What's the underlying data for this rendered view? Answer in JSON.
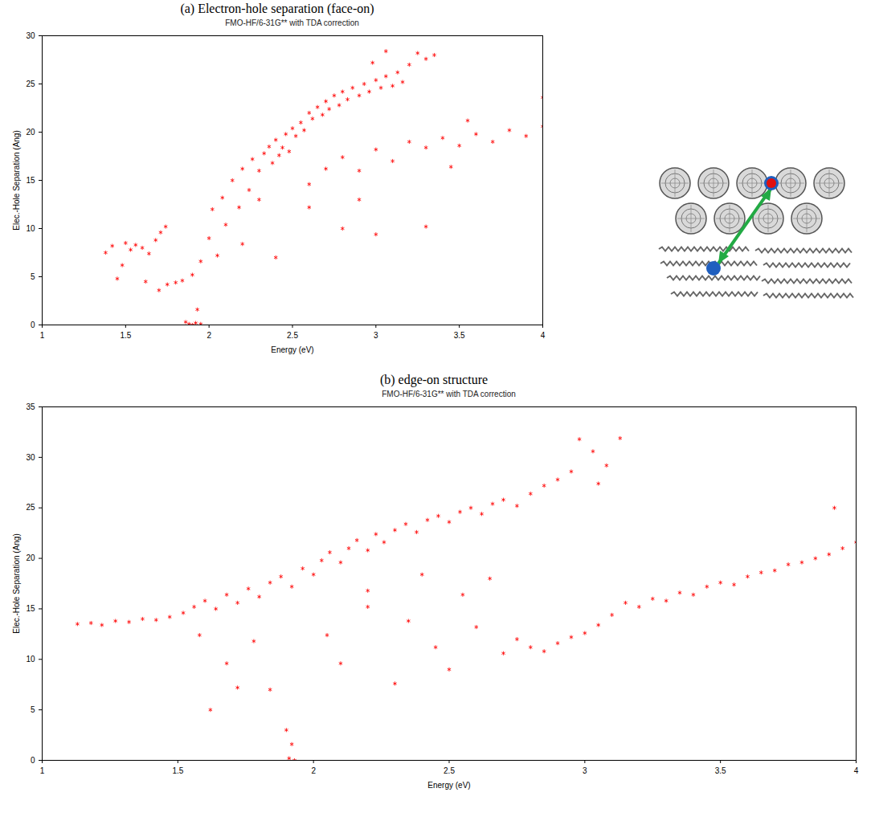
{
  "chart_data": [
    {
      "type": "scatter",
      "title": "(a) Electron-hole separation (face-on)",
      "subtitle": "FMO-HF/6-31G** with TDA correction",
      "x_label": "Energy (eV)",
      "y_label": "Elec.-Hole Separation (Ang)",
      "color": "#ff0000",
      "marker": "asterisk",
      "grid": false,
      "xlim": [
        1,
        4
      ],
      "xticks": [
        1,
        1.5,
        2,
        2.5,
        3,
        3.5,
        4
      ],
      "ylim": [
        0,
        30
      ],
      "yticks": [
        0,
        5,
        10,
        15,
        20,
        25,
        30
      ],
      "x": [
        1.38,
        1.42,
        1.45,
        1.48,
        1.5,
        1.53,
        1.56,
        1.6,
        1.64,
        1.68,
        1.71,
        1.74,
        1.62,
        1.7,
        1.75,
        1.8,
        1.84,
        1.9,
        1.95,
        1.86,
        1.88,
        1.9,
        1.92,
        1.95,
        1.93,
        2.0,
        2.02,
        2.05,
        2.08,
        2.1,
        2.14,
        2.18,
        2.2,
        2.24,
        2.26,
        2.3,
        2.3,
        2.33,
        2.36,
        2.38,
        2.4,
        2.42,
        2.44,
        2.46,
        2.48,
        2.5,
        2.52,
        2.55,
        2.57,
        2.6,
        2.62,
        2.65,
        2.68,
        2.7,
        2.72,
        2.75,
        2.78,
        2.8,
        2.83,
        2.86,
        2.9,
        2.93,
        2.96,
        3.0,
        3.03,
        3.06,
        3.1,
        3.13,
        3.16,
        3.2,
        3.25,
        3.3,
        3.35,
        3.06,
        2.98,
        2.6,
        2.7,
        2.8,
        2.9,
        3.0,
        3.1,
        3.2,
        3.3,
        3.4,
        3.5,
        3.6,
        3.7,
        3.8,
        3.9,
        4.0,
        4.0,
        3.45,
        2.4,
        2.6,
        2.8,
        3.0,
        3.3,
        2.9,
        2.2,
        3.55
      ],
      "values": [
        7.5,
        8.2,
        4.8,
        6.2,
        8.5,
        7.8,
        8.3,
        8.0,
        7.4,
        8.8,
        9.6,
        10.2,
        4.5,
        3.6,
        4.2,
        4.4,
        4.6,
        5.2,
        6.6,
        0.3,
        0.1,
        0.0,
        0.2,
        0.1,
        1.6,
        9.0,
        12.0,
        7.2,
        13.2,
        10.4,
        15.0,
        12.2,
        16.2,
        14.0,
        17.2,
        16.0,
        13.0,
        17.8,
        18.5,
        16.8,
        19.2,
        17.6,
        18.4,
        19.8,
        18.0,
        20.4,
        19.6,
        21.0,
        20.2,
        22.0,
        21.4,
        22.6,
        21.8,
        23.2,
        22.4,
        23.8,
        22.8,
        24.2,
        23.4,
        24.6,
        23.8,
        25.0,
        24.2,
        25.4,
        24.6,
        25.8,
        24.8,
        26.2,
        25.2,
        27.0,
        28.2,
        27.6,
        28.0,
        28.4,
        27.2,
        14.6,
        16.2,
        17.4,
        16.0,
        18.2,
        17.0,
        19.0,
        18.4,
        19.4,
        18.6,
        19.8,
        19.0,
        20.2,
        19.6,
        20.6,
        23.6,
        16.4,
        7.0,
        12.2,
        10.0,
        9.4,
        10.2,
        13.0,
        8.4,
        21.2
      ]
    },
    {
      "type": "scatter",
      "title": "(b) edge-on structure",
      "subtitle": "FMO-HF/6-31G** with TDA correction",
      "x_label": "Energy (eV)",
      "y_label": "Elec.-Hole Separation (Ang)",
      "color": "#ff0000",
      "marker": "asterisk",
      "grid": false,
      "xlim": [
        1,
        4
      ],
      "xticks": [
        1,
        1.5,
        2,
        2.5,
        3,
        3.5,
        4
      ],
      "ylim": [
        0,
        35
      ],
      "yticks": [
        0,
        5,
        10,
        15,
        20,
        25,
        30,
        35
      ],
      "x": [
        1.13,
        1.18,
        1.22,
        1.27,
        1.32,
        1.37,
        1.42,
        1.47,
        1.52,
        1.56,
        1.6,
        1.64,
        1.68,
        1.72,
        1.76,
        1.8,
        1.84,
        1.88,
        1.92,
        1.96,
        2.0,
        2.03,
        2.06,
        2.1,
        2.13,
        2.16,
        2.2,
        2.23,
        2.26,
        2.3,
        2.34,
        2.38,
        2.42,
        2.46,
        2.5,
        2.54,
        2.58,
        2.62,
        2.66,
        2.7,
        2.75,
        2.8,
        2.85,
        2.9,
        2.95,
        2.98,
        3.03,
        3.08,
        3.13,
        3.05,
        1.58,
        1.62,
        1.68,
        1.72,
        1.78,
        1.84,
        1.9,
        1.91,
        1.93,
        1.92,
        2.05,
        2.1,
        2.2,
        2.3,
        2.35,
        2.45,
        2.5,
        2.55,
        2.6,
        2.65,
        2.7,
        2.75,
        2.8,
        2.85,
        2.9,
        2.95,
        3.0,
        3.05,
        3.1,
        3.15,
        3.2,
        3.25,
        3.3,
        3.35,
        3.4,
        3.45,
        3.5,
        3.55,
        3.6,
        3.65,
        3.7,
        3.75,
        3.8,
        3.85,
        3.9,
        3.95,
        4.0,
        3.92,
        2.4,
        2.2
      ],
      "values": [
        13.5,
        13.6,
        13.4,
        13.8,
        13.7,
        14.0,
        13.9,
        14.2,
        14.6,
        15.2,
        15.8,
        15.0,
        16.4,
        15.6,
        17.0,
        16.2,
        17.6,
        18.2,
        17.2,
        19.0,
        18.4,
        19.8,
        20.6,
        19.6,
        21.0,
        21.8,
        20.8,
        22.4,
        21.6,
        22.8,
        23.4,
        22.6,
        23.8,
        24.2,
        23.6,
        24.6,
        25.0,
        24.4,
        25.4,
        25.8,
        25.2,
        26.4,
        27.2,
        27.8,
        28.6,
        31.8,
        30.6,
        29.2,
        31.9,
        27.4,
        12.4,
        5.0,
        9.6,
        7.2,
        11.8,
        7.0,
        3.0,
        0.2,
        0.0,
        1.6,
        12.4,
        9.6,
        15.2,
        7.6,
        13.8,
        11.2,
        9.0,
        16.4,
        13.2,
        18.0,
        10.6,
        12.0,
        11.2,
        10.8,
        11.6,
        12.2,
        12.6,
        13.4,
        14.4,
        15.6,
        15.2,
        16.0,
        15.8,
        16.6,
        16.4,
        17.2,
        17.6,
        17.4,
        18.2,
        18.6,
        18.8,
        19.4,
        19.6,
        20.0,
        20.4,
        21.0,
        21.6,
        25.0,
        18.4,
        16.8
      ]
    }
  ]
}
